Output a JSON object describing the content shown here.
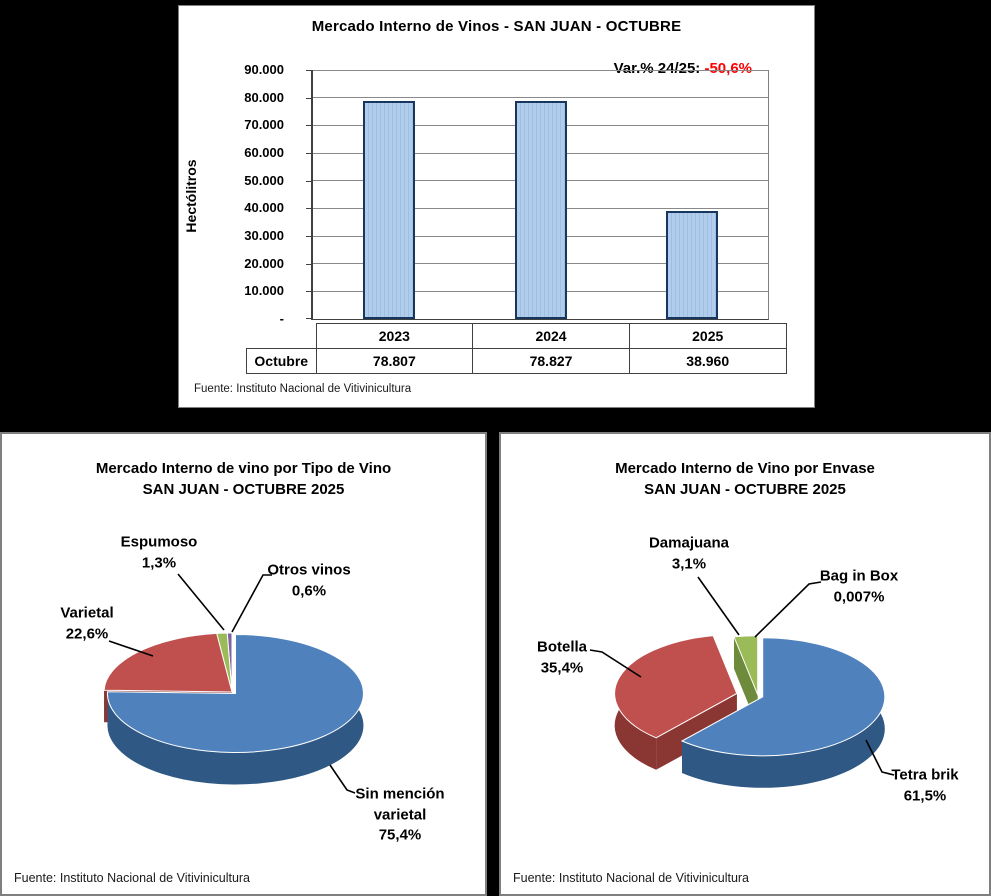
{
  "source_note": "Fuente: Instituto Nacional de Vitivinicultura",
  "chart_data": [
    {
      "type": "bar",
      "title": "Mercado Interno de Vinos - SAN JUAN  -  OCTUBRE",
      "ylabel": "Hectólitros",
      "categories": [
        "2023",
        "2024",
        "2025"
      ],
      "values": [
        78807,
        78827,
        38960
      ],
      "value_labels": [
        "78.807",
        "78.827",
        "38.960"
      ],
      "row_label": "Octubre",
      "ylim": [
        0,
        90000
      ],
      "ytick_labels": [
        "90.000",
        "80.000",
        "70.000",
        "60.000",
        "50.000",
        "40.000",
        "30.000",
        "20.000",
        "10.000",
        "-"
      ],
      "grid": true,
      "legend": "none",
      "annotation": {
        "label": "Var.% 24/25:",
        "value": "-50,6%",
        "value_color": "#FF0000"
      },
      "bar_fill": "#A9C6E9",
      "bar_border": "#17375E",
      "source": "Fuente: Instituto Nacional de Vitivinicultura"
    },
    {
      "type": "pie",
      "title": "Mercado Interno de vino por Tipo de Vino",
      "subtitle": "SAN JUAN -  OCTUBRE 2025",
      "slices": [
        {
          "label": "Sin mención varietal",
          "pct_label": "75,4%",
          "value": 75.4,
          "color": "#4F81BD",
          "side_color": "#2F5984"
        },
        {
          "label": "Varietal",
          "pct_label": "22,6%",
          "value": 22.6,
          "color": "#C0504D",
          "side_color": "#8A3734"
        },
        {
          "label": "Espumoso",
          "pct_label": "1,3%",
          "value": 1.3,
          "color": "#9BBB59",
          "side_color": "#6E8A3B"
        },
        {
          "label": "Otros vinos",
          "pct_label": "0,6%",
          "value": 0.6,
          "color": "#8064A2",
          "side_color": "#5C4677"
        }
      ],
      "source": "Fuente: Instituto Nacional de Vitivinicultura"
    },
    {
      "type": "pie",
      "title": "Mercado Interno de Vino por Envase",
      "subtitle": "SAN JUAN - OCTUBRE 2025",
      "slices": [
        {
          "label": "Tetra brik",
          "pct_label": "61,5%",
          "value": 61.5,
          "color": "#4F81BD",
          "side_color": "#2F5984"
        },
        {
          "label": "Botella",
          "pct_label": "35,4%",
          "value": 35.4,
          "color": "#C0504D",
          "side_color": "#8A3734"
        },
        {
          "label": "Damajuana",
          "pct_label": "3,1%",
          "value": 3.1,
          "color": "#9BBB59",
          "side_color": "#6E8A3B"
        },
        {
          "label": "Bag in Box",
          "pct_label": "0,007%",
          "value": 0.007,
          "color": "#8064A2",
          "side_color": "#5C4677"
        }
      ],
      "source": "Fuente: Instituto Nacional de Vitivinicultura"
    }
  ]
}
